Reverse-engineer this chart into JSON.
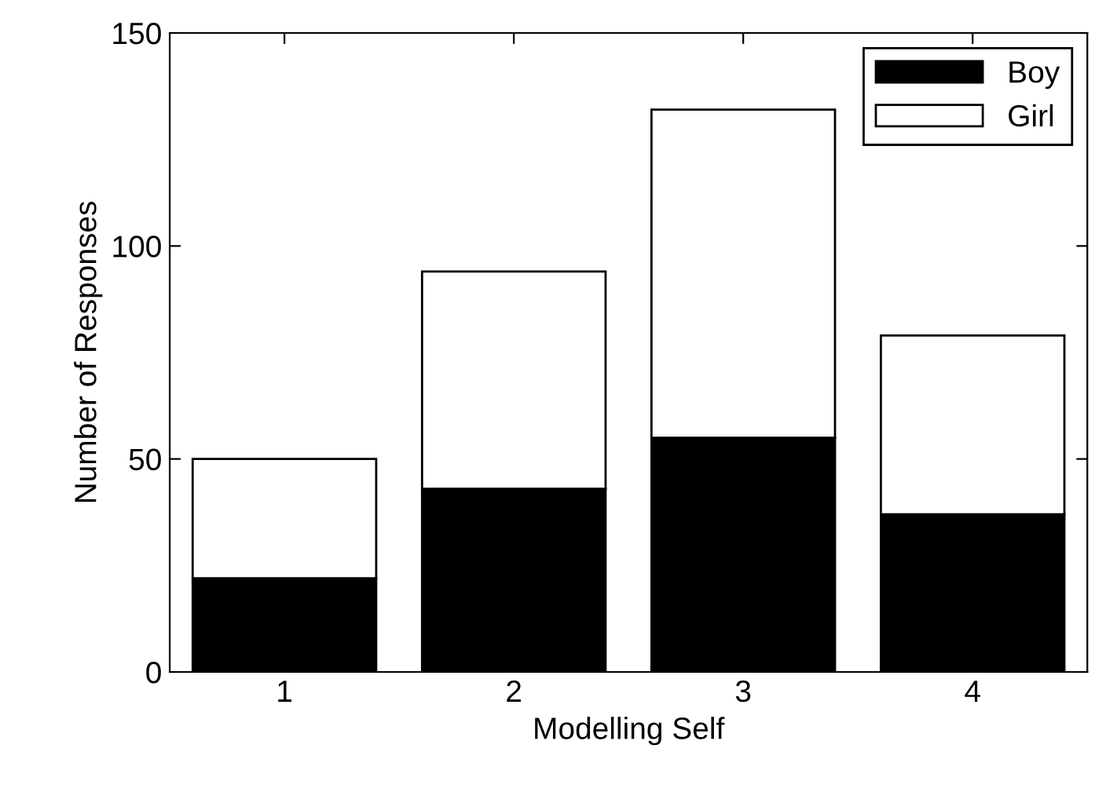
{
  "chart_data": {
    "type": "bar",
    "stacked": true,
    "xlabel": "Modelling Self",
    "ylabel": "Number of Responses",
    "categories": [
      "1",
      "2",
      "3",
      "4"
    ],
    "series": [
      {
        "name": "Boy",
        "color": "#000000",
        "values": [
          22,
          43,
          55,
          37
        ]
      },
      {
        "name": "Girl",
        "color": "#ffffff",
        "values": [
          28,
          51,
          77,
          42
        ]
      }
    ],
    "ylim": [
      0,
      150
    ],
    "yticks": [
      0,
      50,
      100,
      150
    ],
    "grid": false,
    "legend": "top right"
  }
}
